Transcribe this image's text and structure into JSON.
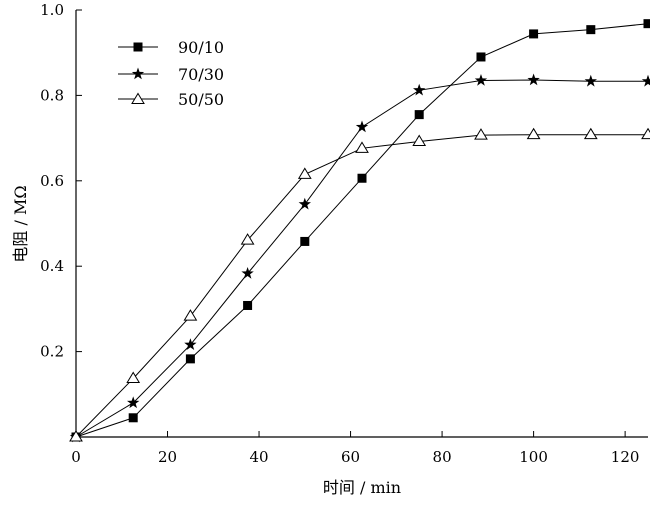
{
  "chart_data": {
    "type": "line",
    "title": "",
    "xlabel": "时间 / min",
    "ylabel": "电阻 / MΩ",
    "xlim": [
      0,
      125
    ],
    "ylim": [
      0,
      1.0
    ],
    "xticks": [
      0,
      20,
      40,
      60,
      80,
      100,
      120
    ],
    "xtick_labels": [
      "0",
      "20",
      "40",
      "60",
      "80",
      "100",
      "120"
    ],
    "yticks": [
      0.2,
      0.4,
      0.6,
      0.8,
      1.0
    ],
    "ytick_labels": [
      "0.2",
      "0.4",
      "0.6",
      "0.8",
      "1.0"
    ],
    "grid": false,
    "legend_position": "top-left",
    "series": [
      {
        "name": "90/10",
        "marker": "filled-square",
        "x": [
          0,
          12.5,
          25,
          37.5,
          50,
          62.5,
          75,
          88.5,
          100,
          112.5,
          125
        ],
        "y": [
          0.0,
          0.045,
          0.183,
          0.308,
          0.458,
          0.606,
          0.755,
          0.89,
          0.944,
          0.954,
          0.968
        ]
      },
      {
        "name": "70/30",
        "marker": "filled-star",
        "x": [
          0,
          12.5,
          25,
          37.5,
          50,
          62.5,
          75,
          88.5,
          100,
          112.5,
          125
        ],
        "y": [
          0.0,
          0.08,
          0.216,
          0.383,
          0.545,
          0.726,
          0.812,
          0.835,
          0.836,
          0.833,
          0.833
        ]
      },
      {
        "name": "50/50",
        "marker": "open-triangle",
        "x": [
          0,
          12.5,
          25,
          37.5,
          50,
          62.5,
          75,
          88.5,
          100,
          112.5,
          125
        ],
        "y": [
          0.0,
          0.137,
          0.283,
          0.461,
          0.615,
          0.676,
          0.692,
          0.707,
          0.708,
          0.708,
          0.708
        ]
      }
    ]
  }
}
